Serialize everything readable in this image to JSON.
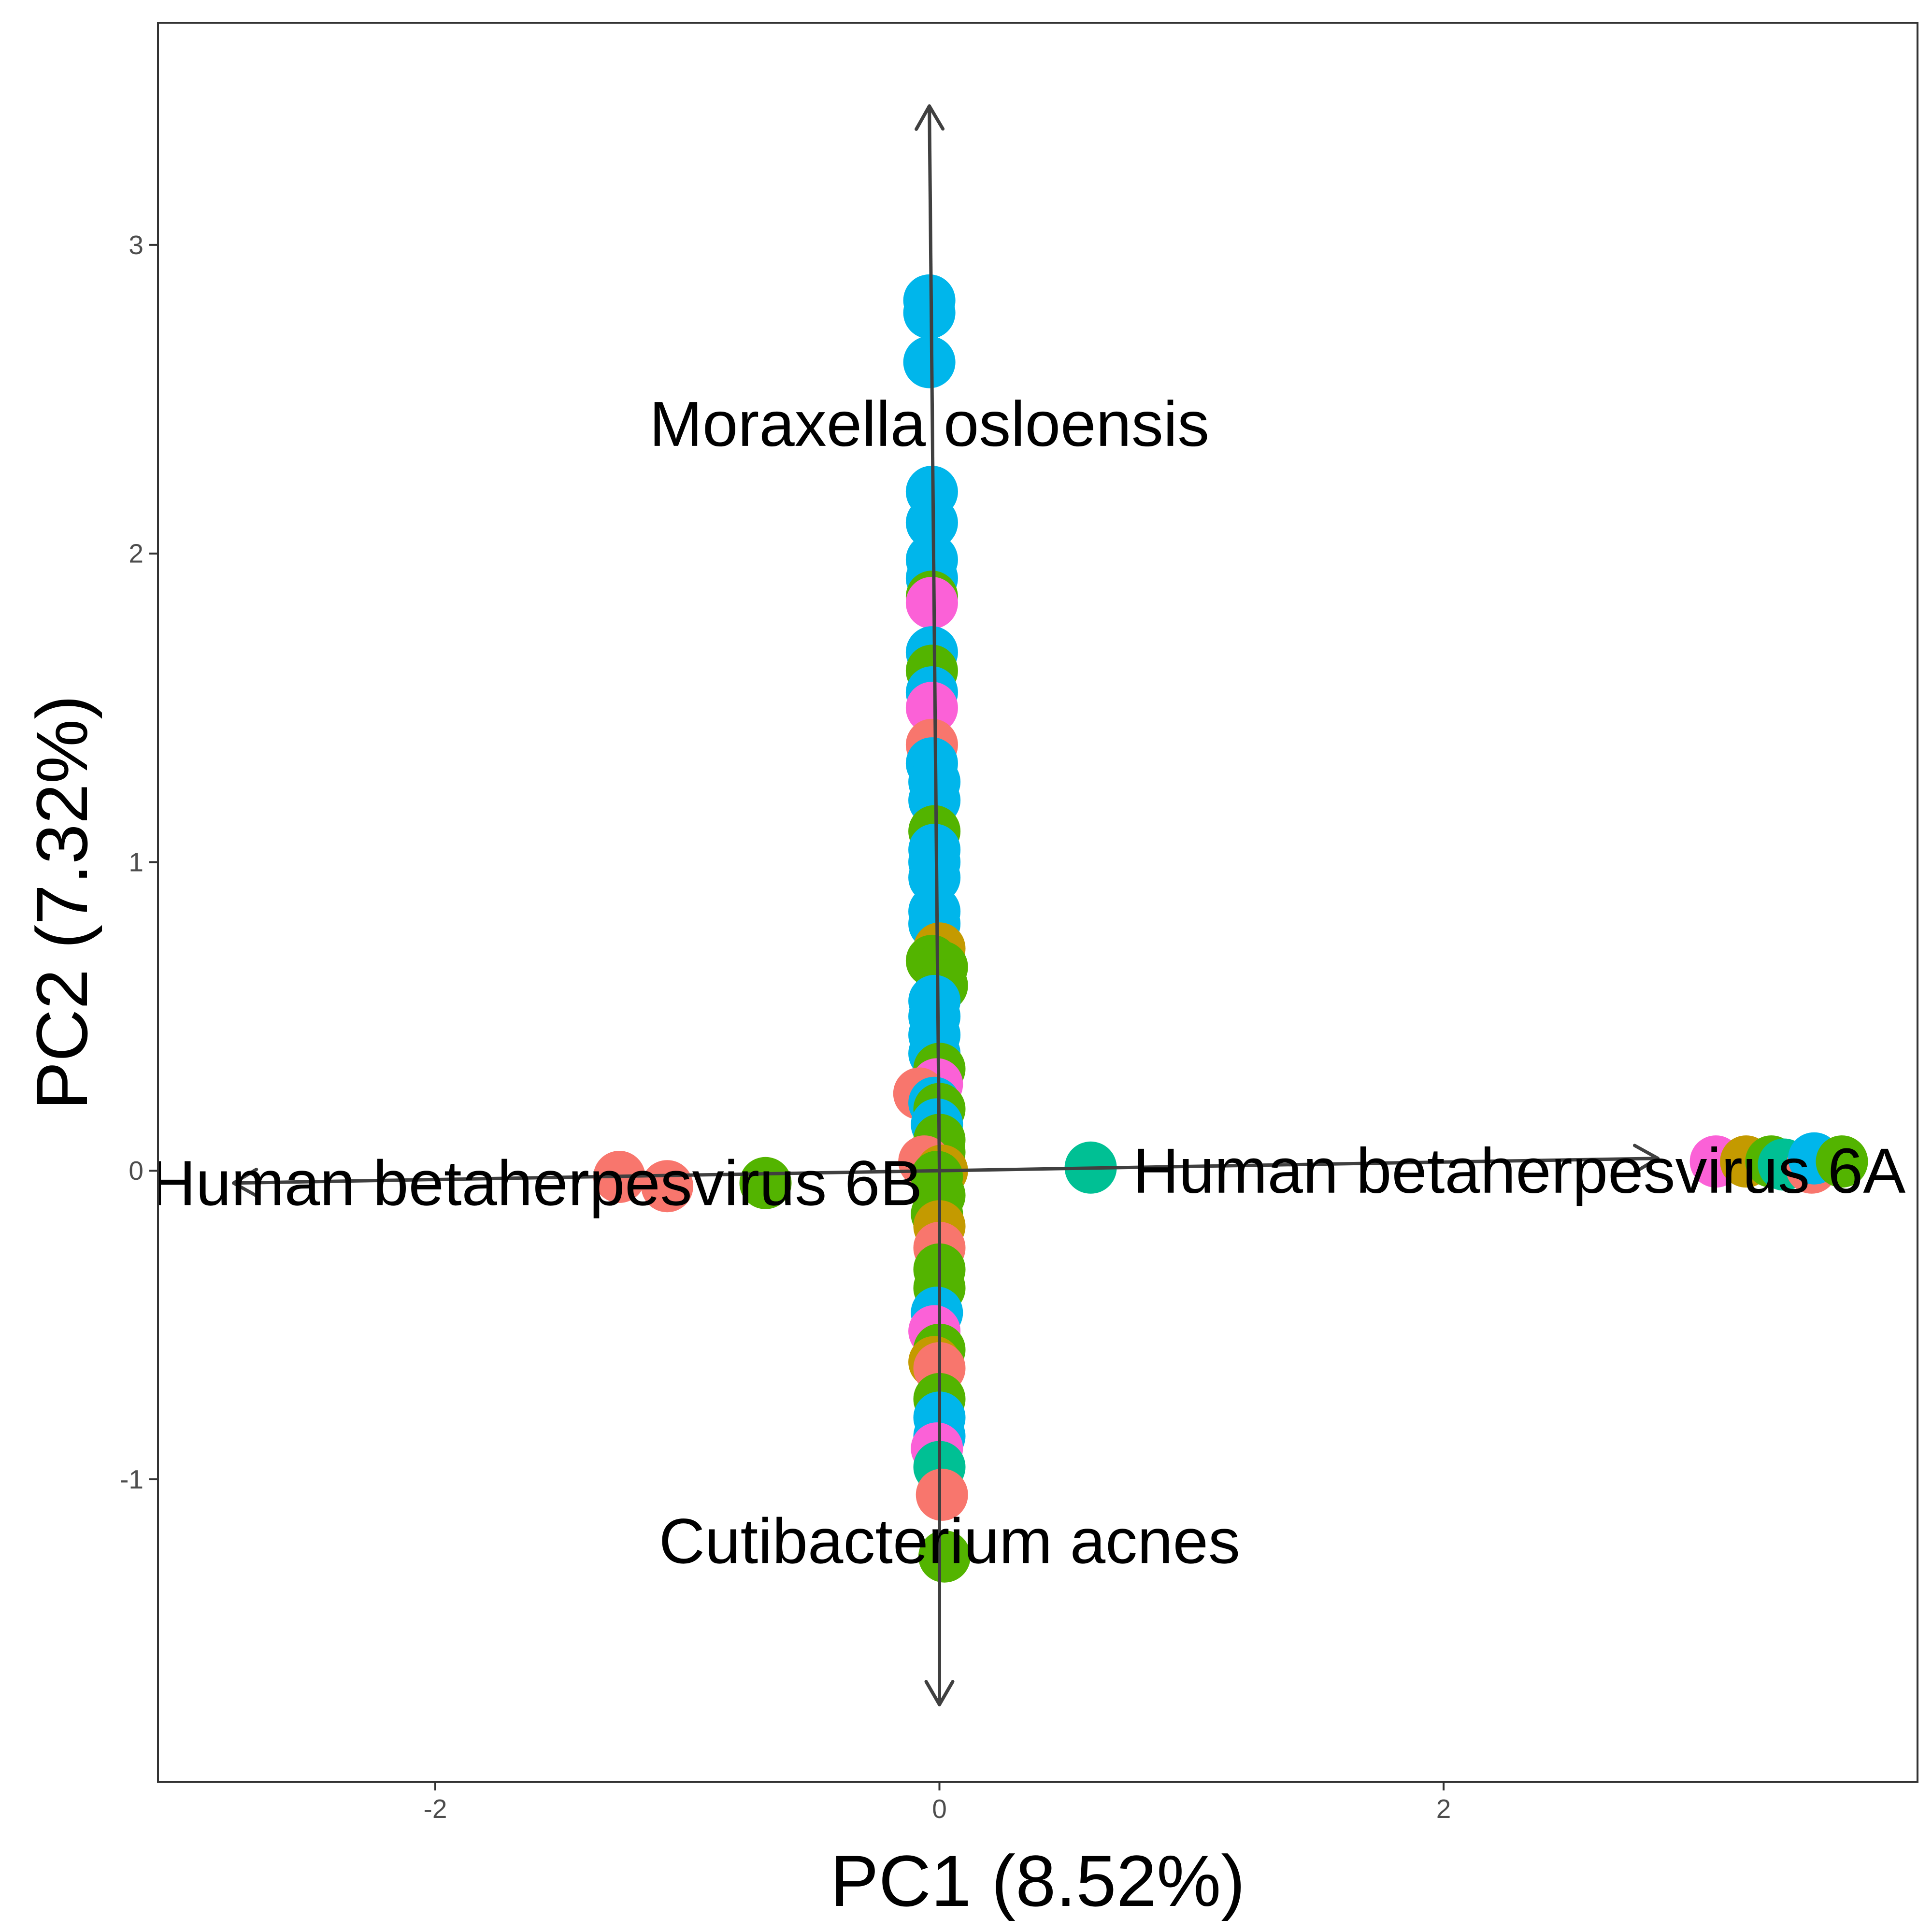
{
  "chart_data": {
    "type": "scatter",
    "xlabel": "PC1 (8.52%)",
    "ylabel": "PC2 (7.32%)",
    "xlim": [
      -3.1,
      3.88
    ],
    "ylim": [
      -1.98,
      3.72
    ],
    "x_ticks": [
      {
        "value": -2,
        "label": "-2"
      },
      {
        "value": 0,
        "label": "0"
      },
      {
        "value": 2,
        "label": "2"
      }
    ],
    "y_ticks": [
      {
        "value": -1,
        "label": "-1"
      },
      {
        "value": 0,
        "label": "0"
      },
      {
        "value": 1,
        "label": "1"
      },
      {
        "value": 2,
        "label": "2"
      },
      {
        "value": 3,
        "label": "3"
      }
    ],
    "grid": false,
    "legend": "none",
    "colors": {
      "red": "#F8766D",
      "gold": "#C49A00",
      "green": "#53B400",
      "teal": "#00C094",
      "blue": "#00B6EB",
      "magenta": "#FB61D7",
      "arrow": "#404040",
      "panel_border": "#333333",
      "tick": "#333333"
    },
    "loadings": [
      {
        "label": "Moraxella osloensis",
        "x": -0.04,
        "y": 3.45,
        "label_x": -0.04,
        "label_y": 2.42
      },
      {
        "label": "Cutibacterium acnes",
        "x": 0.0,
        "y": -1.73,
        "label_x": 0.04,
        "label_y": -1.2
      },
      {
        "label": "Human betaherpesvirus 6A",
        "x": 2.85,
        "y": 0.04,
        "label_x": 2.3,
        "label_y": 0.0
      },
      {
        "label": "Human betaherpesvirus 6B",
        "x": -2.8,
        "y": -0.04,
        "label_x": -1.6,
        "label_y": -0.04
      }
    ],
    "points": [
      {
        "x": -0.04,
        "y": 2.82,
        "c": "blue"
      },
      {
        "x": -0.04,
        "y": 2.78,
        "c": "blue"
      },
      {
        "x": -0.04,
        "y": 2.62,
        "c": "blue"
      },
      {
        "x": -0.03,
        "y": 2.2,
        "c": "blue"
      },
      {
        "x": -0.03,
        "y": 2.1,
        "c": "blue"
      },
      {
        "x": -0.03,
        "y": 1.98,
        "c": "blue"
      },
      {
        "x": -0.03,
        "y": 1.92,
        "c": "blue"
      },
      {
        "x": -0.03,
        "y": 1.86,
        "c": "green"
      },
      {
        "x": -0.03,
        "y": 1.84,
        "c": "magenta"
      },
      {
        "x": -0.03,
        "y": 1.68,
        "c": "blue"
      },
      {
        "x": -0.03,
        "y": 1.62,
        "c": "green"
      },
      {
        "x": -0.03,
        "y": 1.55,
        "c": "blue"
      },
      {
        "x": -0.03,
        "y": 1.5,
        "c": "magenta"
      },
      {
        "x": -0.03,
        "y": 1.38,
        "c": "red"
      },
      {
        "x": -0.03,
        "y": 1.32,
        "c": "blue"
      },
      {
        "x": -0.02,
        "y": 1.26,
        "c": "blue"
      },
      {
        "x": -0.02,
        "y": 1.2,
        "c": "blue"
      },
      {
        "x": -0.02,
        "y": 1.1,
        "c": "green"
      },
      {
        "x": -0.02,
        "y": 1.04,
        "c": "blue"
      },
      {
        "x": -0.02,
        "y": 1.0,
        "c": "blue"
      },
      {
        "x": -0.02,
        "y": 0.95,
        "c": "blue"
      },
      {
        "x": -0.02,
        "y": 0.84,
        "c": "blue"
      },
      {
        "x": -0.02,
        "y": 0.8,
        "c": "blue"
      },
      {
        "x": 0.0,
        "y": 0.72,
        "c": "gold"
      },
      {
        "x": -0.03,
        "y": 0.68,
        "c": "green"
      },
      {
        "x": 0.01,
        "y": 0.66,
        "c": "green"
      },
      {
        "x": 0.01,
        "y": 0.6,
        "c": "green"
      },
      {
        "x": -0.02,
        "y": 0.55,
        "c": "blue"
      },
      {
        "x": -0.02,
        "y": 0.5,
        "c": "blue"
      },
      {
        "x": -0.02,
        "y": 0.44,
        "c": "blue"
      },
      {
        "x": -0.02,
        "y": 0.38,
        "c": "blue"
      },
      {
        "x": 0.0,
        "y": 0.33,
        "c": "green"
      },
      {
        "x": -0.01,
        "y": 0.28,
        "c": "magenta"
      },
      {
        "x": -0.08,
        "y": 0.25,
        "c": "red"
      },
      {
        "x": -0.02,
        "y": 0.22,
        "c": "blue"
      },
      {
        "x": 0.0,
        "y": 0.2,
        "c": "green"
      },
      {
        "x": -0.01,
        "y": 0.15,
        "c": "blue"
      },
      {
        "x": 0.0,
        "y": 0.1,
        "c": "green"
      },
      {
        "x": 0.0,
        "y": 0.06,
        "c": "green"
      },
      {
        "x": -0.06,
        "y": 0.03,
        "c": "red"
      },
      {
        "x": 0.01,
        "y": 0.0,
        "c": "gold"
      },
      {
        "x": -0.01,
        "y": -0.02,
        "c": "green"
      },
      {
        "x": 0.0,
        "y": -0.08,
        "c": "green"
      },
      {
        "x": -0.01,
        "y": -0.14,
        "c": "green"
      },
      {
        "x": 0.0,
        "y": -0.18,
        "c": "gold"
      },
      {
        "x": 0.0,
        "y": -0.25,
        "c": "red"
      },
      {
        "x": 0.0,
        "y": -0.32,
        "c": "green"
      },
      {
        "x": 0.0,
        "y": -0.38,
        "c": "green"
      },
      {
        "x": -0.01,
        "y": -0.46,
        "c": "blue"
      },
      {
        "x": -0.02,
        "y": -0.52,
        "c": "magenta"
      },
      {
        "x": 0.0,
        "y": -0.58,
        "c": "green"
      },
      {
        "x": -0.02,
        "y": -0.62,
        "c": "gold"
      },
      {
        "x": 0.0,
        "y": -0.64,
        "c": "red"
      },
      {
        "x": 0.0,
        "y": -0.74,
        "c": "green"
      },
      {
        "x": 0.0,
        "y": -0.8,
        "c": "blue"
      },
      {
        "x": 0.0,
        "y": -0.86,
        "c": "blue"
      },
      {
        "x": -0.01,
        "y": -0.9,
        "c": "magenta"
      },
      {
        "x": 0.0,
        "y": -0.96,
        "c": "teal"
      },
      {
        "x": 0.01,
        "y": -1.05,
        "c": "red"
      },
      {
        "x": 0.02,
        "y": -1.25,
        "c": "green"
      },
      {
        "x": 0.6,
        "y": 0.01,
        "c": "teal"
      },
      {
        "x": -1.27,
        "y": -0.02,
        "c": "red"
      },
      {
        "x": -1.08,
        "y": -0.05,
        "c": "red"
      },
      {
        "x": -0.69,
        "y": -0.04,
        "c": "green"
      },
      {
        "x": 3.08,
        "y": 0.03,
        "c": "magenta"
      },
      {
        "x": 3.2,
        "y": 0.03,
        "c": "gold"
      },
      {
        "x": 3.3,
        "y": 0.03,
        "c": "green"
      },
      {
        "x": 3.35,
        "y": 0.02,
        "c": "teal"
      },
      {
        "x": 3.46,
        "y": 0.01,
        "c": "red"
      },
      {
        "x": 3.47,
        "y": 0.04,
        "c": "blue"
      },
      {
        "x": 3.58,
        "y": 0.03,
        "c": "green"
      }
    ]
  }
}
